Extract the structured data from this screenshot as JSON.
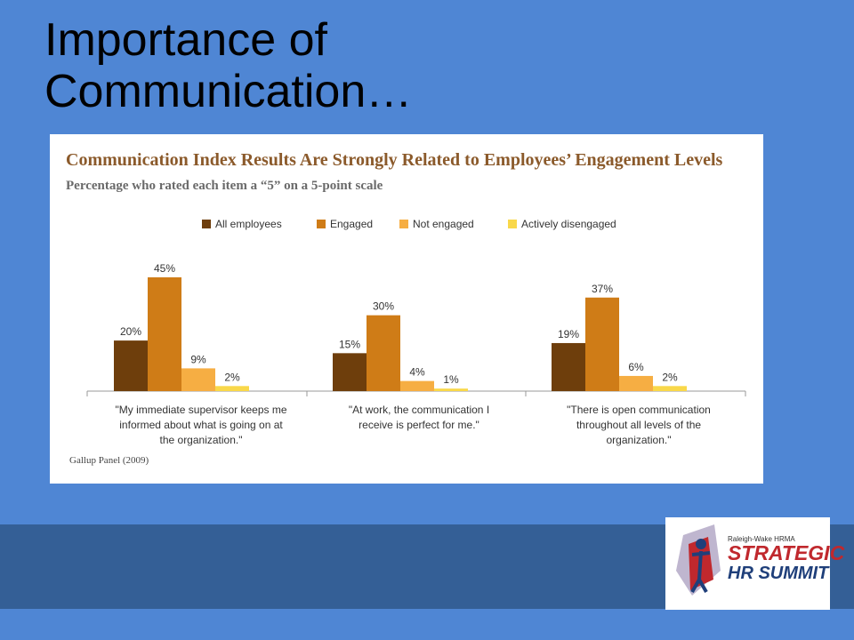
{
  "slide": {
    "title": "Importance of Communication…"
  },
  "chart_data": {
    "type": "bar",
    "title": "Communication Index Results Are Strongly Related to Employees’ Engagement Levels",
    "subtitle": "Percentage who rated each item a “5” on a 5-point scale",
    "categories": [
      "\"My immediate supervisor keeps me informed about what is going on at the organization.\"",
      "\"At work, the communication I receive is perfect for me.\"",
      "\"There is open communication throughout all levels of the organization.\""
    ],
    "series": [
      {
        "name": "All employees",
        "color": "#6e3e0c",
        "values": [
          20,
          15,
          19
        ]
      },
      {
        "name": "Engaged",
        "color": "#cf7c17",
        "values": [
          45,
          30,
          37
        ]
      },
      {
        "name": "Not engaged",
        "color": "#f6ae43",
        "values": [
          9,
          4,
          6
        ]
      },
      {
        "name": "Actively disengaged",
        "color": "#f9d84a",
        "values": [
          2,
          1,
          2
        ]
      }
    ],
    "value_suffix": "%",
    "ylim": [
      0,
      45
    ],
    "legend_position": "top",
    "grid": false,
    "source": "Gallup Panel (2009)"
  },
  "logo": {
    "org": "Raleigh-Wake HRMA",
    "line1": "STRATEGIC",
    "line2": "HR SUMMIT"
  }
}
